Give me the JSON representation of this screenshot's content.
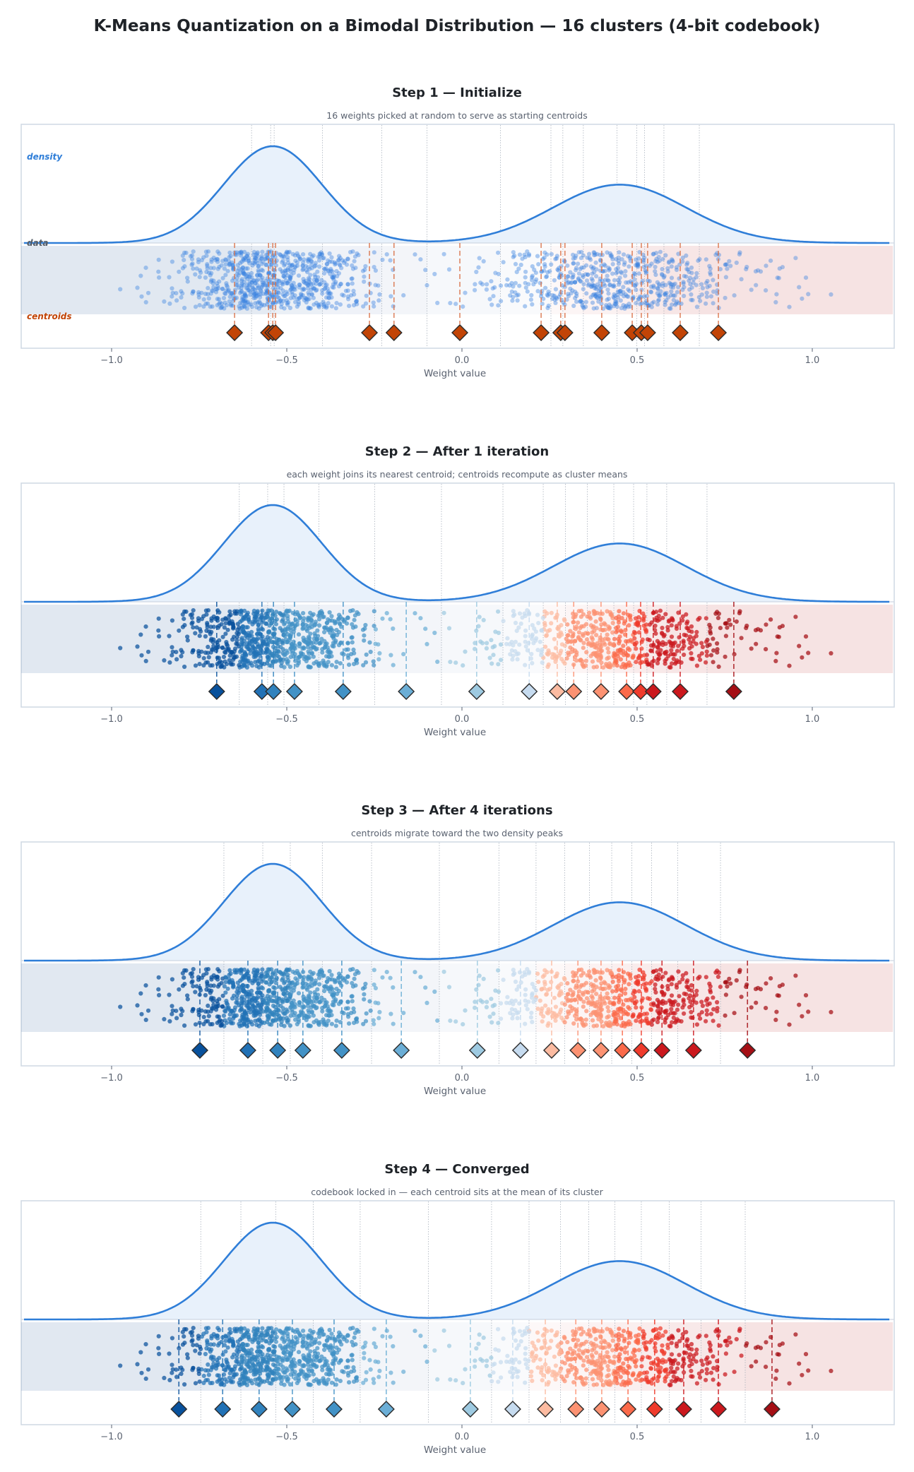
{
  "title": "K-Means Quantization on a Bimodal Distribution  —  16 clusters (4-bit codebook)",
  "colors": {
    "density_line": "#2f7ed8",
    "density_fill": "#e8f1fb",
    "init_centroid": "#c24406",
    "init_stem": "#d9734a",
    "init_points": "#3b82e0",
    "frame": "#cfd8e3",
    "centroids_label": "#c24406",
    "density_label": "#2f7ed8",
    "data_label": "#555c66",
    "blues": [
      "#08519c",
      "#2171b5",
      "#3182bd",
      "#4292c6",
      "#6baed6",
      "#9ecae1",
      "#c6dbef"
    ],
    "reds": [
      "#fcbba1",
      "#fc9272",
      "#fb6a4a",
      "#ef3b2c",
      "#cb181d",
      "#a50f15",
      "#67000d"
    ]
  },
  "region_labels": {
    "density": "density",
    "data": "data",
    "centroids": "centroids"
  },
  "chart_data": [
    {
      "type": "scatter",
      "title": "Step 1  —  Initialize",
      "subtitle": "16 weights picked at random to serve as starting centroids",
      "xlabel": "Weight value",
      "xlim": [
        -1.26,
        1.23
      ],
      "xticks": [
        -1.0,
        -0.5,
        0.0,
        0.5,
        1.0
      ],
      "xtick_labels": [
        "−1.0",
        "−0.5",
        "0.0",
        "0.5",
        "1.0"
      ],
      "colored_by_cluster": false,
      "centroids": [
        -0.649,
        -0.552,
        -0.54,
        -0.532,
        -0.264,
        -0.194,
        -0.006,
        0.226,
        0.282,
        0.294,
        0.399,
        0.486,
        0.512,
        0.53,
        0.623,
        0.732
      ]
    },
    {
      "type": "scatter",
      "title": "Step 2  —  After 1 iteration",
      "subtitle": "each weight joins its nearest centroid; centroids recompute as cluster means",
      "xlabel": "Weight value",
      "xlim": [
        -1.26,
        1.23
      ],
      "xticks": [
        -1.0,
        -0.5,
        0.0,
        0.5,
        1.0
      ],
      "xtick_labels": [
        "−1.0",
        "−0.5",
        "0.0",
        "0.5",
        "1.0"
      ],
      "colored_by_cluster": true,
      "centroids": [
        -0.7,
        -0.571,
        -0.538,
        -0.478,
        -0.339,
        -0.159,
        0.042,
        0.192,
        0.272,
        0.319,
        0.397,
        0.47,
        0.51,
        0.546,
        0.623,
        0.776
      ]
    },
    {
      "type": "scatter",
      "title": "Step 3  —  After 4 iterations",
      "subtitle": "centroids migrate toward the two density peaks",
      "xlabel": "Weight value",
      "xlim": [
        -1.26,
        1.23
      ],
      "xticks": [
        -1.0,
        -0.5,
        0.0,
        0.5,
        1.0
      ],
      "xtick_labels": [
        "−1.0",
        "−0.5",
        "0.0",
        "0.5",
        "1.0"
      ],
      "colored_by_cluster": true,
      "centroids": [
        -0.748,
        -0.611,
        -0.526,
        -0.454,
        -0.343,
        -0.173,
        0.044,
        0.167,
        0.256,
        0.331,
        0.397,
        0.458,
        0.512,
        0.571,
        0.661,
        0.815
      ]
    },
    {
      "type": "scatter",
      "title": "Step 4  —  Converged",
      "subtitle": "codebook locked in — each centroid sits at the mean of its cluster",
      "xlabel": "Weight value",
      "xlim": [
        -1.26,
        1.23
      ],
      "xticks": [
        -1.0,
        -0.5,
        0.0,
        0.5,
        1.0
      ],
      "xtick_labels": [
        "−1.0",
        "−0.5",
        "0.0",
        "0.5",
        "1.0"
      ],
      "colored_by_cluster": true,
      "centroids": [
        -0.808,
        -0.683,
        -0.579,
        -0.484,
        -0.365,
        -0.216,
        0.024,
        0.145,
        0.238,
        0.325,
        0.399,
        0.474,
        0.55,
        0.633,
        0.732,
        0.885
      ]
    }
  ],
  "distribution": {
    "components": [
      {
        "mean": -0.54,
        "std": 0.14,
        "weight": 0.55
      },
      {
        "mean": 0.45,
        "std": 0.19,
        "weight": 0.45
      }
    ],
    "n_points": 1400
  }
}
